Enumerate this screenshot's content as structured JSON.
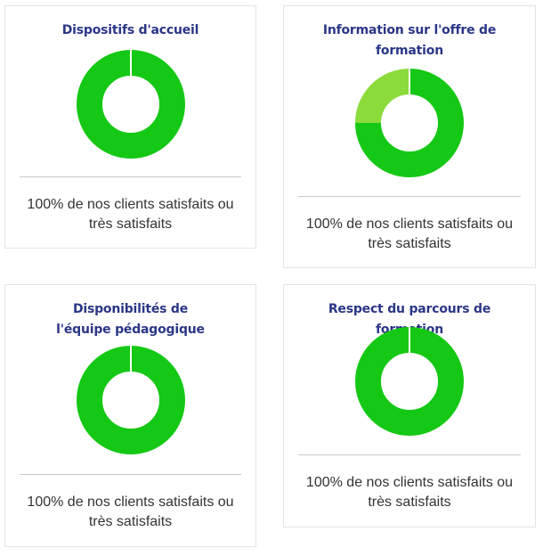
{
  "colors": {
    "title": "#2b3686",
    "satisfied": "#15c815",
    "very_satisfied": "#8cdb3c",
    "separator": "#ffffff"
  },
  "chart_data": [
    {
      "type": "pie",
      "title": "Dispositifs d'accueil",
      "slices": [
        {
          "value": 100,
          "color": "#15c815"
        }
      ],
      "caption": "100% de nos clients satisfaits ou très satisfaits"
    },
    {
      "type": "pie",
      "title": "Information sur l'offre de formation",
      "slices": [
        {
          "value": 75,
          "color": "#15c815"
        },
        {
          "value": 25,
          "color": "#8cdb3c"
        }
      ],
      "caption": "100% de nos clients satisfaits ou très satisfaits"
    },
    {
      "type": "pie",
      "title": "Disponibilités de l'équipe pédagogique",
      "slices": [
        {
          "value": 100,
          "color": "#15c815"
        }
      ],
      "caption": "100% de nos clients satisfaits ou très satisfaits"
    },
    {
      "type": "pie",
      "title": "Respect du parcours de formation",
      "slices": [
        {
          "value": 100,
          "color": "#15c815"
        }
      ],
      "caption": "100% de nos clients satisfaits ou très satisfaits"
    }
  ]
}
